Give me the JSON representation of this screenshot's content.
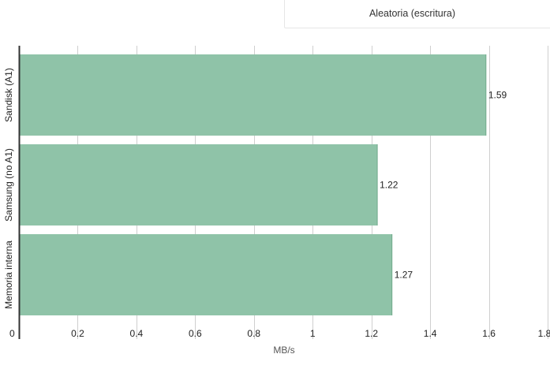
{
  "legend": {
    "label": "Aleatoria (escritura)"
  },
  "colors": {
    "bar": "#8fc3a8",
    "grid": "#cfcfcf",
    "axis": "#333333",
    "text": "#222222",
    "label": "#555555"
  },
  "chart_data": {
    "type": "bar",
    "orientation": "horizontal",
    "title": "",
    "xlabel": "MB/s",
    "ylabel": "",
    "xlim": [
      0,
      1.8
    ],
    "xticks": [
      0,
      0.2,
      0.4,
      0.6,
      0.8,
      1,
      1.2,
      1.4,
      1.6,
      1.8
    ],
    "grid": true,
    "legend_position": "top-right",
    "categories": [
      "Sandisk (A1)",
      "Samsung (no A1)",
      "Memoria interna"
    ],
    "series": [
      {
        "name": "Aleatoria (escritura)",
        "values": [
          1.59,
          1.22,
          1.27
        ],
        "data_labels": [
          "1.59",
          "1.22",
          "1.27"
        ]
      }
    ]
  }
}
